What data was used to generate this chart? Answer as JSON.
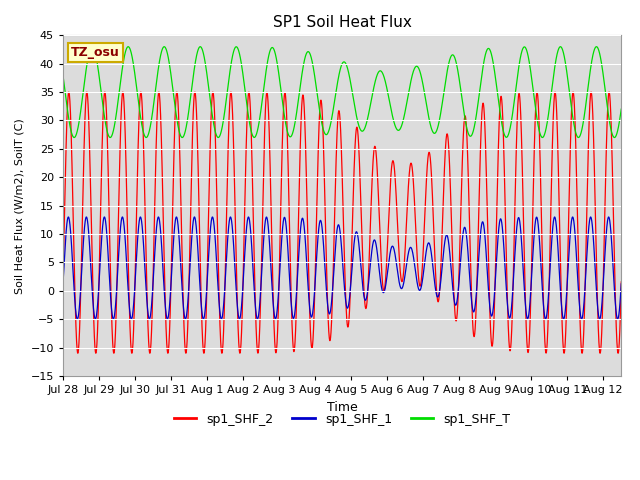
{
  "title": "SP1 Soil Heat Flux",
  "xlabel": "Time",
  "ylabel": "Soil Heat Flux (W/m2), SoilT (C)",
  "ylim": [
    -15,
    45
  ],
  "yticks": [
    -15,
    -10,
    -5,
    0,
    5,
    10,
    15,
    20,
    25,
    30,
    35,
    40,
    45
  ],
  "xtick_labels": [
    "Jul 28",
    "Jul 29",
    "Jul 30",
    "Jul 31",
    "Aug 1",
    "Aug 2",
    "Aug 3",
    "Aug 4",
    "Aug 5",
    "Aug 6",
    "Aug 7",
    "Aug 8",
    "Aug 9",
    "Aug 10",
    "Aug 11",
    "Aug 12"
  ],
  "bg_color": "#dcdcdc",
  "line_colors": {
    "sp1_SHF_2": "#ff0000",
    "sp1_SHF_1": "#0000cc",
    "sp1_SHF_T": "#00dd00"
  },
  "annotation_text": "TZ_osu",
  "annotation_color": "#8b0000",
  "annotation_bg": "#ffffcc",
  "annotation_border": "#ccaa00",
  "num_days": 15.5,
  "period_shf_hours": 12,
  "period_T_hours": 24,
  "shf2_max": 35,
  "shf2_min": -11,
  "shf1_max": 13,
  "shf1_min": -5,
  "shft_max": 43,
  "shft_min": 27,
  "figsize": [
    6.4,
    4.8
  ],
  "dpi": 100
}
